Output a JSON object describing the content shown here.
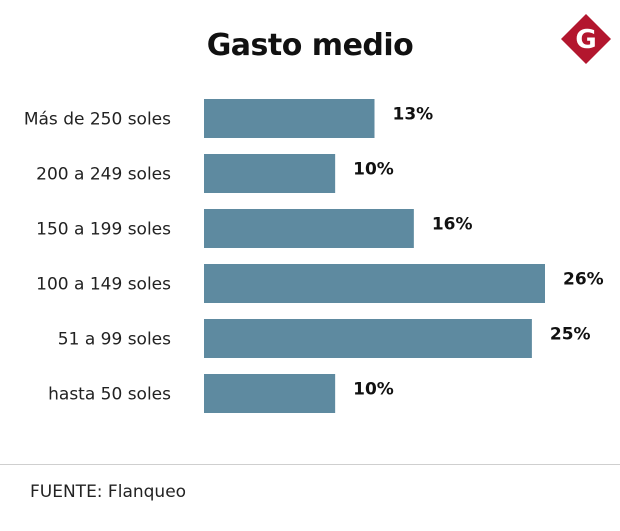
{
  "header": {
    "title": "Gasto medio"
  },
  "logo": {
    "letter": "G",
    "color": "#b3162e"
  },
  "chart_data": {
    "type": "bar",
    "orientation": "horizontal",
    "title": "Gasto medio",
    "categories": [
      "Más de 250 soles",
      "200 a 249 soles",
      "150 a 199 soles",
      "100 a 149 soles",
      "51 a 99 soles",
      "hasta 50 soles"
    ],
    "values": [
      13,
      10,
      16,
      26,
      25,
      10
    ],
    "value_labels": [
      "13%",
      "10%",
      "16%",
      "26%",
      "25%",
      "10%"
    ],
    "unit": "%",
    "xlim": [
      0,
      26
    ],
    "grid": false,
    "bar_color": "#5e8aa0"
  },
  "footer": {
    "source": "FUENTE: Flanqueo"
  }
}
